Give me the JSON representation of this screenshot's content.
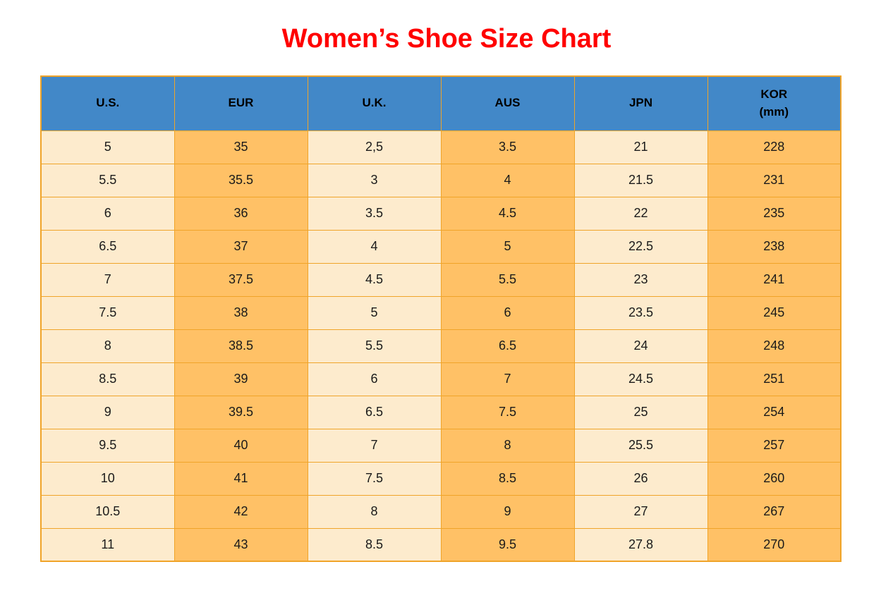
{
  "page_title": "Women’s Shoe Size Chart",
  "colors": {
    "title-red": "#ff0000",
    "header-blue": "#4288c8",
    "cell-cream": "#fdebcd",
    "cell-orange": "#ffc166",
    "border-orange": "#f0a429",
    "text-black": "#1a1a1a"
  },
  "chart_data": {
    "type": "table",
    "title": "Women’s Shoe Size Chart",
    "columns": [
      "U.S.",
      "EUR",
      "U.K.",
      "AUS",
      "JPN",
      "KOR (mm)"
    ],
    "header_cells": [
      {
        "line1": "U.S.",
        "line2": ""
      },
      {
        "line1": "EUR",
        "line2": ""
      },
      {
        "line1": "U.K.",
        "line2": ""
      },
      {
        "line1": "AUS",
        "line2": ""
      },
      {
        "line1": "JPN",
        "line2": ""
      },
      {
        "line1": "KOR",
        "line2": "(mm)"
      }
    ],
    "rows": [
      [
        "5",
        "35",
        "2,5",
        "3.5",
        "21",
        "228"
      ],
      [
        "5.5",
        "35.5",
        "3",
        "4",
        "21.5",
        "231"
      ],
      [
        "6",
        "36",
        "3.5",
        "4.5",
        "22",
        "235"
      ],
      [
        "6.5",
        "37",
        "4",
        "5",
        "22.5",
        "238"
      ],
      [
        "7",
        "37.5",
        "4.5",
        "5.5",
        "23",
        "241"
      ],
      [
        "7.5",
        "38",
        "5",
        "6",
        "23.5",
        "245"
      ],
      [
        "8",
        "38.5",
        "5.5",
        "6.5",
        "24",
        "248"
      ],
      [
        "8.5",
        "39",
        "6",
        "7",
        "24.5",
        "251"
      ],
      [
        "9",
        "39.5",
        "6.5",
        "7.5",
        "25",
        "254"
      ],
      [
        "9.5",
        "40",
        "7",
        "8",
        "25.5",
        "257"
      ],
      [
        "10",
        "41",
        "7.5",
        "8.5",
        "26",
        "260"
      ],
      [
        "10.5",
        "42",
        "8",
        "9",
        "27",
        "267"
      ],
      [
        "11",
        "43",
        "8.5",
        "9.5",
        "27.8",
        "270"
      ]
    ]
  }
}
